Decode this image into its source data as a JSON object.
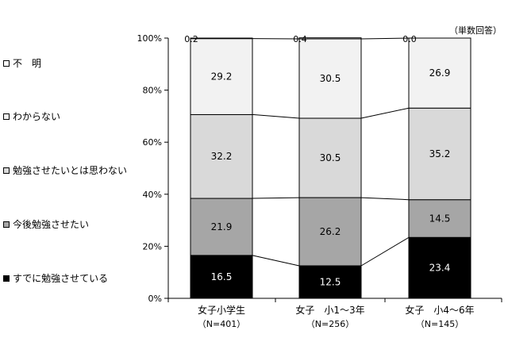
{
  "note": "（単数回答）",
  "chart_data": {
    "type": "bar",
    "stacked": true,
    "percent": true,
    "ylim": [
      0,
      100
    ],
    "yticks": [
      "0%",
      "20%",
      "40%",
      "60%",
      "80%",
      "100%"
    ],
    "categories": [
      {
        "label": "女子小学生",
        "sublabel": "（N=401）"
      },
      {
        "label": "女子　小1～3年",
        "sublabel": "（N=256）"
      },
      {
        "label": "女子　小4～6年",
        "sublabel": "（N=145）"
      }
    ],
    "series": [
      {
        "name": "すでに勉強させている",
        "color": "#000000",
        "text_color": "#ffffff",
        "values": [
          16.5,
          12.5,
          23.4
        ],
        "labels": [
          "16.5",
          "12.5",
          "23.4"
        ]
      },
      {
        "name": "今後勉強させたい",
        "color": "#a6a6a6",
        "text_color": "#000000",
        "values": [
          21.9,
          26.2,
          14.5
        ],
        "labels": [
          "21.9",
          "26.2",
          "14.5"
        ]
      },
      {
        "name": "勉強させたいとは思わない",
        "color": "#d9d9d9",
        "text_color": "#000000",
        "values": [
          32.2,
          30.5,
          35.2
        ],
        "labels": [
          "32.2",
          "30.5",
          "35.2"
        ]
      },
      {
        "name": "わからない",
        "color": "#f2f2f2",
        "text_color": "#000000",
        "values": [
          29.2,
          30.5,
          26.9
        ],
        "labels": [
          "29.2",
          "30.5",
          "26.9"
        ]
      },
      {
        "name": "不　明",
        "color": "#ffffff",
        "text_color": "#000000",
        "values": [
          0.2,
          0.4,
          0.0
        ],
        "labels": [
          "0.2",
          "0.4",
          "0.0"
        ]
      }
    ],
    "legend_order": [
      "不　明",
      "わからない",
      "勉強させたいとは思わない",
      "今後勉強させたい",
      "すでに勉強させている"
    ],
    "legend_position": "left",
    "grid": false
  }
}
